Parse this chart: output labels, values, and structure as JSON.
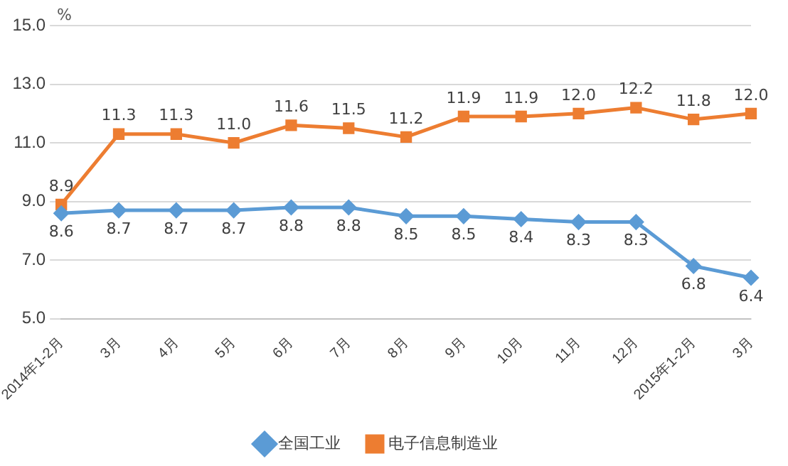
{
  "chart_data": {
    "type": "line",
    "ylabel": "%",
    "categories": [
      "2014年1-2月",
      "3月",
      "4月",
      "5月",
      "6月",
      "7月",
      "8月",
      "9月",
      "10月",
      "11月",
      "12月",
      "2015年1-2月",
      "3月"
    ],
    "series": [
      {
        "name": "全国工业",
        "color": "#5b9bd5",
        "marker": "diamond",
        "values": [
          8.6,
          8.7,
          8.7,
          8.7,
          8.8,
          8.8,
          8.5,
          8.5,
          8.4,
          8.3,
          8.3,
          6.8,
          6.4
        ],
        "value_labels": [
          "8.6",
          "8.7",
          "8.7",
          "8.7",
          "8.8",
          "8.8",
          "8.5",
          "8.5",
          "8.4",
          "8.3",
          "8.3",
          "6.8",
          "6.4"
        ]
      },
      {
        "name": "电子信息制造业",
        "color": "#ed7d31",
        "marker": "square",
        "values": [
          8.9,
          11.3,
          11.3,
          11.0,
          11.6,
          11.5,
          11.2,
          11.9,
          11.9,
          12.0,
          12.2,
          11.8,
          12.0
        ],
        "value_labels": [
          "8.9",
          "11.3",
          "11.3",
          "11.0",
          "11.6",
          "11.5",
          "11.2",
          "11.9",
          "11.9",
          "12.0",
          "12.2",
          "11.8",
          "12.0"
        ]
      }
    ],
    "ylim": [
      5,
      15
    ],
    "yticks": [
      {
        "value": 5,
        "label": "5.0"
      },
      {
        "value": 7,
        "label": "7.0"
      },
      {
        "value": 9,
        "label": "9.0"
      },
      {
        "value": 11,
        "label": "11.0"
      },
      {
        "value": 13,
        "label": "13.0"
      },
      {
        "value": 15,
        "label": "15.0"
      }
    ],
    "grid": "y",
    "legend": "bottom",
    "line_style": "solid"
  }
}
